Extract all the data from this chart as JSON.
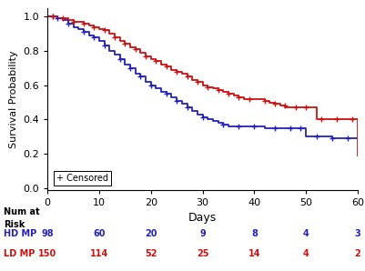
{
  "xlabel": "Days",
  "ylabel": "Survival Probability",
  "xlim": [
    0,
    60
  ],
  "ylim": [
    -0.01,
    1.05
  ],
  "yticks": [
    0.0,
    0.2,
    0.4,
    0.6,
    0.8,
    1.0
  ],
  "xticks": [
    0,
    10,
    20,
    30,
    40,
    50,
    60
  ],
  "blue_color": "#2222bb",
  "red_color": "#cc1111",
  "legend_text": "+ Censored",
  "num_at_risk_label": "Num at\nRisk",
  "hd_label": "HD MP",
  "ld_label": "LD MP",
  "hd_risk": [
    98,
    60,
    20,
    9,
    8,
    4,
    3
  ],
  "ld_risk": [
    150,
    114,
    52,
    25,
    14,
    4,
    2
  ],
  "risk_timepoints": [
    0,
    10,
    20,
    30,
    40,
    50,
    60
  ],
  "hd_steps_x": [
    0,
    1,
    2,
    3,
    4,
    5,
    6,
    7,
    8,
    9,
    10,
    11,
    12,
    13,
    14,
    15,
    16,
    17,
    18,
    19,
    20,
    21,
    22,
    23,
    24,
    25,
    26,
    27,
    28,
    29,
    30,
    31,
    32,
    33,
    34,
    35,
    36,
    37,
    38,
    39,
    40,
    41,
    42,
    43,
    44,
    45,
    46,
    47,
    48,
    49,
    50,
    51,
    52,
    53,
    54,
    55,
    56,
    57,
    58,
    59,
    60
  ],
  "hd_steps_y": [
    1.0,
    1.0,
    0.99,
    0.98,
    0.96,
    0.94,
    0.93,
    0.91,
    0.89,
    0.88,
    0.86,
    0.83,
    0.8,
    0.78,
    0.75,
    0.72,
    0.7,
    0.67,
    0.65,
    0.62,
    0.6,
    0.58,
    0.56,
    0.55,
    0.53,
    0.51,
    0.49,
    0.47,
    0.45,
    0.43,
    0.41,
    0.4,
    0.39,
    0.38,
    0.37,
    0.36,
    0.36,
    0.36,
    0.36,
    0.36,
    0.36,
    0.36,
    0.35,
    0.35,
    0.35,
    0.35,
    0.35,
    0.35,
    0.35,
    0.35,
    0.3,
    0.3,
    0.3,
    0.3,
    0.3,
    0.29,
    0.29,
    0.29,
    0.29,
    0.29,
    0.29
  ],
  "ld_steps_x": [
    0,
    1,
    2,
    3,
    4,
    5,
    6,
    7,
    8,
    9,
    10,
    11,
    12,
    13,
    14,
    15,
    16,
    17,
    18,
    19,
    20,
    21,
    22,
    23,
    24,
    25,
    26,
    27,
    28,
    29,
    30,
    31,
    32,
    33,
    34,
    35,
    36,
    37,
    38,
    39,
    40,
    41,
    42,
    43,
    44,
    45,
    46,
    47,
    48,
    49,
    50,
    51,
    52,
    53,
    54,
    55,
    56,
    57,
    58,
    59,
    60
  ],
  "ld_steps_y": [
    1.0,
    1.0,
    0.99,
    0.99,
    0.98,
    0.97,
    0.97,
    0.96,
    0.95,
    0.94,
    0.93,
    0.92,
    0.9,
    0.88,
    0.86,
    0.84,
    0.82,
    0.81,
    0.79,
    0.77,
    0.75,
    0.74,
    0.72,
    0.71,
    0.69,
    0.68,
    0.67,
    0.65,
    0.63,
    0.62,
    0.6,
    0.59,
    0.58,
    0.57,
    0.56,
    0.55,
    0.54,
    0.53,
    0.52,
    0.52,
    0.52,
    0.52,
    0.51,
    0.5,
    0.49,
    0.48,
    0.47,
    0.47,
    0.47,
    0.47,
    0.47,
    0.47,
    0.4,
    0.4,
    0.4,
    0.4,
    0.4,
    0.4,
    0.4,
    0.4,
    0.19
  ],
  "hd_censored_x": [
    1,
    2,
    4,
    7,
    9,
    11,
    14,
    16,
    18,
    20,
    23,
    25,
    27,
    30,
    34,
    37,
    40,
    44,
    47,
    49,
    52,
    55,
    58
  ],
  "hd_censored_y": [
    1.0,
    0.99,
    0.96,
    0.91,
    0.88,
    0.83,
    0.75,
    0.7,
    0.65,
    0.6,
    0.55,
    0.51,
    0.47,
    0.41,
    0.37,
    0.36,
    0.36,
    0.35,
    0.35,
    0.35,
    0.3,
    0.29,
    0.29
  ],
  "ld_censored_x": [
    1,
    3,
    5,
    7,
    9,
    11,
    13,
    15,
    17,
    19,
    21,
    23,
    25,
    27,
    29,
    31,
    33,
    35,
    37,
    39,
    42,
    44,
    46,
    48,
    50,
    53,
    56,
    59
  ],
  "ld_censored_y": [
    1.0,
    0.99,
    0.97,
    0.96,
    0.94,
    0.92,
    0.88,
    0.84,
    0.81,
    0.77,
    0.74,
    0.71,
    0.68,
    0.65,
    0.62,
    0.59,
    0.57,
    0.55,
    0.53,
    0.52,
    0.51,
    0.49,
    0.48,
    0.47,
    0.47,
    0.4,
    0.4,
    0.4
  ],
  "background_color": "#ffffff"
}
